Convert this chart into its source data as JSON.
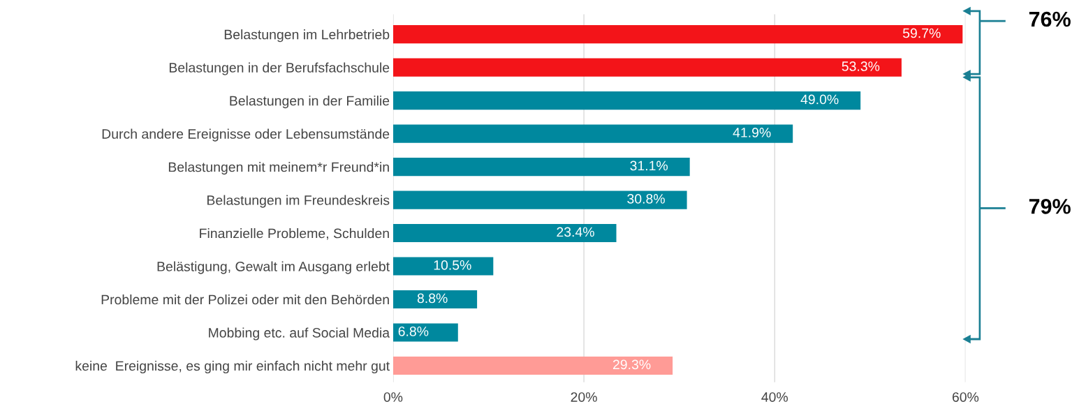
{
  "chart_data": {
    "type": "bar",
    "orientation": "horizontal",
    "categories": [
      "Belastungen im Lehrbetrieb",
      "Belastungen in der Berufsfachschule",
      "Belastungen in der Familie",
      "Durch andere Ereignisse oder Lebensumstände",
      "Belastungen mit meinem*r Freund*in",
      "Belastungen im Freundeskreis",
      "Finanzielle Probleme, Schulden",
      "Belästigung, Gewalt im Ausgang erlebt",
      "Probleme mit der Polizei oder mit den Behörden",
      "Mobbing etc. auf Social Media",
      "keine  Ereignisse, es ging mir einfach nicht mehr gut"
    ],
    "values": [
      59.7,
      53.3,
      49.0,
      41.9,
      31.1,
      30.8,
      23.4,
      10.5,
      8.8,
      6.8,
      29.3
    ],
    "value_labels": [
      "59.7%",
      "53.3%",
      "49.0%",
      "41.9%",
      "31.1%",
      "30.8%",
      "23.4%",
      "10.5%",
      "8.8%",
      "6.8%",
      "29.3%"
    ],
    "colors": [
      "#f31419",
      "#f31419",
      "#00889e",
      "#00889e",
      "#00889e",
      "#00889e",
      "#00889e",
      "#00889e",
      "#00889e",
      "#00889e",
      "#ff9b96"
    ],
    "xlim": [
      0,
      60
    ],
    "xticks": [
      {
        "value": 0,
        "label": "0%"
      },
      {
        "value": 20,
        "label": "20%"
      },
      {
        "value": 40,
        "label": "40%"
      },
      {
        "value": 60,
        "label": "60%"
      }
    ],
    "grid": "x",
    "annotations": [
      "76%",
      "79%"
    ]
  }
}
